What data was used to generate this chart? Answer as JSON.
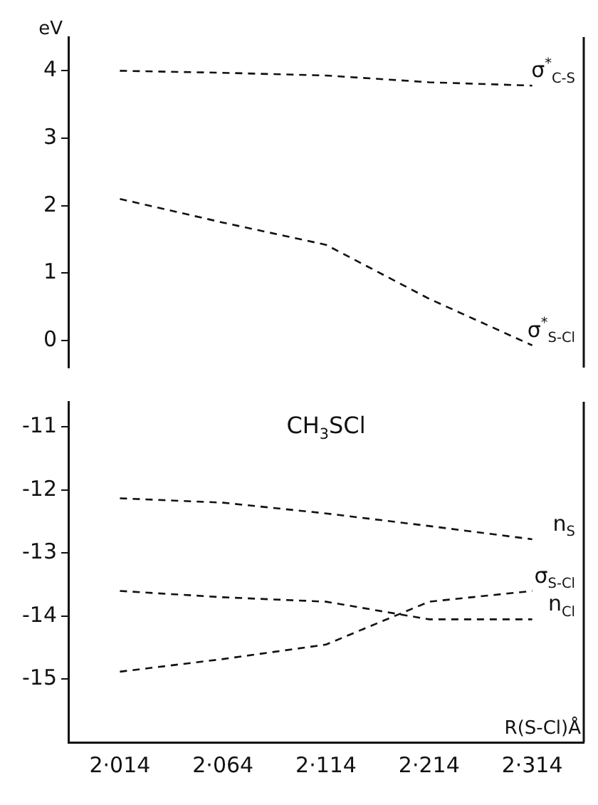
{
  "chart_data": [
    {
      "type": "line",
      "ylabel": "eV",
      "categories": [
        null,
        null,
        null,
        null,
        null
      ],
      "ylim": [
        -0.4,
        4.5
      ],
      "yticks": [
        0,
        1,
        2,
        3,
        4
      ],
      "tick_labels": "y",
      "line_style": "dashed",
      "marker": "none",
      "grid": false,
      "legend": false,
      "series": [
        {
          "name": "σ$^{*}$$_{C-S}$",
          "color": "#111111",
          "values": [
            4.0,
            3.97,
            3.93,
            3.83,
            3.78
          ]
        },
        {
          "name": "σ$^{*}$$_{S-Cl}$",
          "color": "#111111",
          "values": [
            2.1,
            1.75,
            1.42,
            0.62,
            -0.07
          ]
        }
      ]
    },
    {
      "type": "line",
      "xlabel": "R(S-Cl)Å",
      "annotations": [
        "CH$_{3}$SCl"
      ],
      "categories": [
        "2·014",
        "2·064",
        "2·114",
        "2·214",
        "2·314"
      ],
      "ylim": [
        -16,
        -10.6
      ],
      "yticks": [
        -15,
        -14,
        -13,
        -12,
        -11
      ],
      "line_style": "dashed",
      "marker": "none",
      "grid": false,
      "legend": false,
      "series": [
        {
          "name": "n$_{S}$",
          "color": "#111111",
          "values": [
            -12.13,
            -12.2,
            -12.37,
            -12.57,
            -12.78
          ]
        },
        {
          "name": "σ$_{S-Cl}$",
          "color": "#111111",
          "values": [
            -14.88,
            -14.68,
            -14.45,
            -13.77,
            -13.6
          ]
        },
        {
          "name": "n$_{Cl}$",
          "color": "#111111",
          "values": [
            -13.6,
            -13.7,
            -13.77,
            -14.05,
            -14.05
          ]
        }
      ]
    }
  ]
}
